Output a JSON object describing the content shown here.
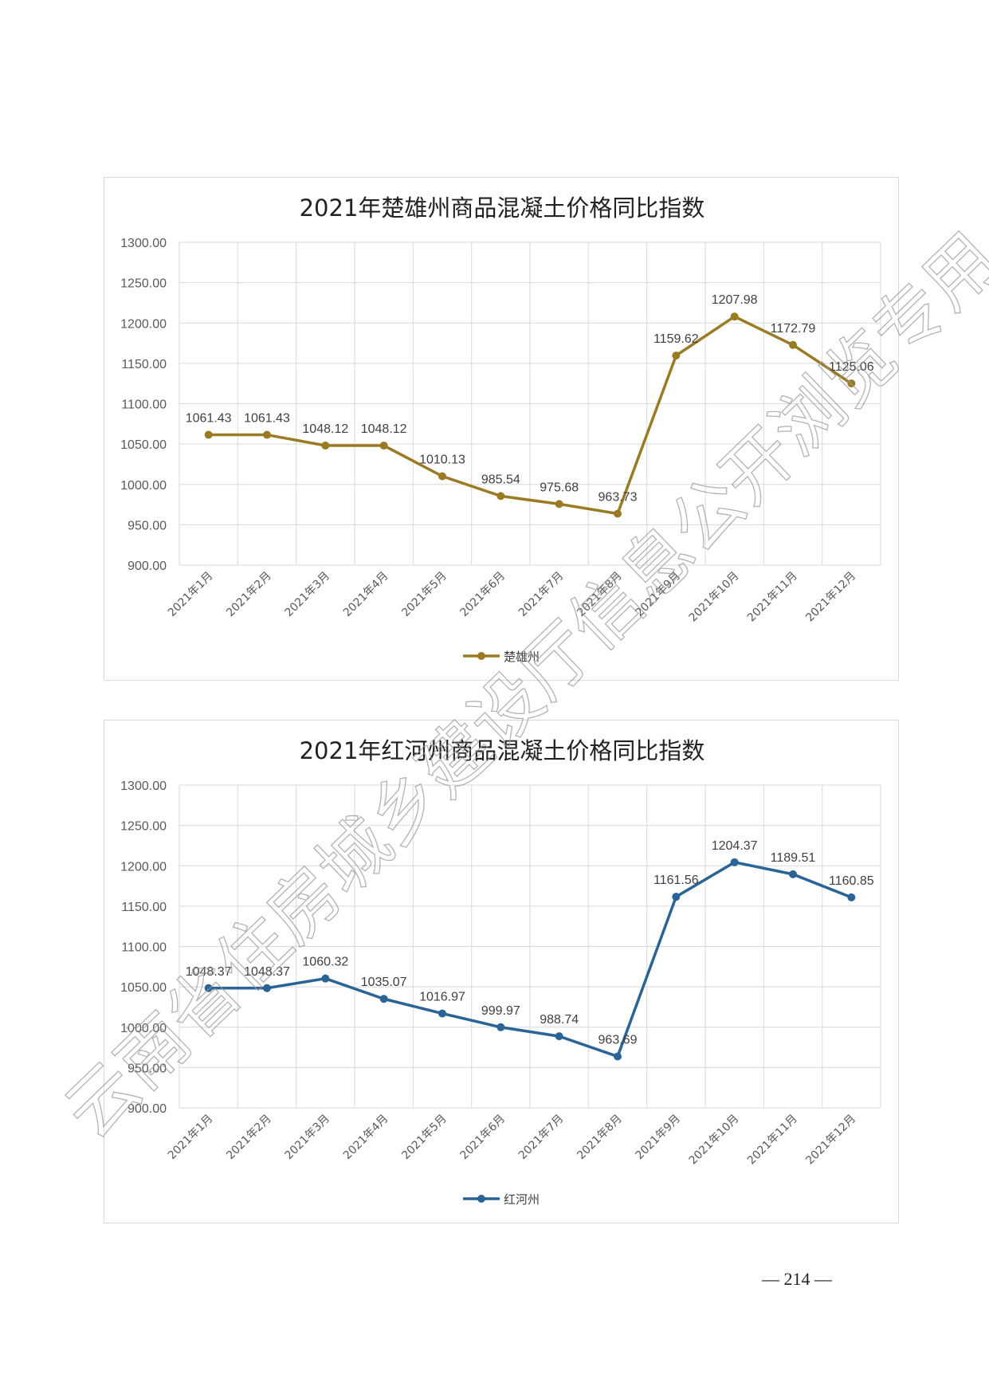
{
  "page": {
    "number": "— 214 —"
  },
  "watermark": {
    "text": "云南省住房城乡建设厅信息公开浏览专用"
  },
  "chart_data": [
    {
      "type": "line",
      "title": "2021年楚雄州商品混凝土价格同比指数",
      "categories": [
        "2021年1月",
        "2021年2月",
        "2021年3月",
        "2021年4月",
        "2021年5月",
        "2021年6月",
        "2021年7月",
        "2021年8月",
        "2021年9月",
        "2021年10月",
        "2021年11月",
        "2021年12月"
      ],
      "series": [
        {
          "name": "楚雄州",
          "color": "#9a7b24",
          "values": [
            1061.43,
            1061.43,
            1048.12,
            1048.12,
            1010.13,
            985.54,
            975.68,
            963.73,
            1159.62,
            1207.98,
            1172.79,
            1125.06
          ],
          "labels": [
            "1061.43",
            "1061.43",
            "1048.12",
            "1048.12",
            "1010.13",
            "985.54",
            "975.68",
            "963.73",
            "1159.62",
            "1207.98",
            "1172.79",
            "1125.06"
          ]
        }
      ],
      "yticks": [
        "900.00",
        "950.00",
        "1000.00",
        "1050.00",
        "1100.00",
        "1150.00",
        "1200.00",
        "1250.00",
        "1300.00"
      ],
      "ylim": [
        900,
        1300
      ],
      "grid": true,
      "legend": "bottom-center"
    },
    {
      "type": "line",
      "title": "2021年红河州商品混凝土价格同比指数",
      "categories": [
        "2021年1月",
        "2021年2月",
        "2021年3月",
        "2021年4月",
        "2021年5月",
        "2021年6月",
        "2021年7月",
        "2021年8月",
        "2021年9月",
        "2021年10月",
        "2021年11月",
        "2021年12月"
      ],
      "series": [
        {
          "name": "红河州",
          "color": "#2a6496",
          "values": [
            1048.37,
            1048.37,
            1060.32,
            1035.07,
            1016.97,
            999.97,
            988.74,
            963.69,
            1161.56,
            1204.37,
            1189.51,
            1160.85
          ],
          "labels": [
            "1048.37",
            "1048.37",
            "1060.32",
            "1035.07",
            "1016.97",
            "999.97",
            "988.74",
            "963.69",
            "1161.56",
            "1204.37",
            "1189.51",
            "1160.85"
          ]
        }
      ],
      "yticks": [
        "900.00",
        "950.00",
        "1000.00",
        "1050.00",
        "1100.00",
        "1150.00",
        "1200.00",
        "1250.00",
        "1300.00"
      ],
      "ylim": [
        900,
        1300
      ],
      "grid": true,
      "legend": "bottom-center"
    }
  ]
}
